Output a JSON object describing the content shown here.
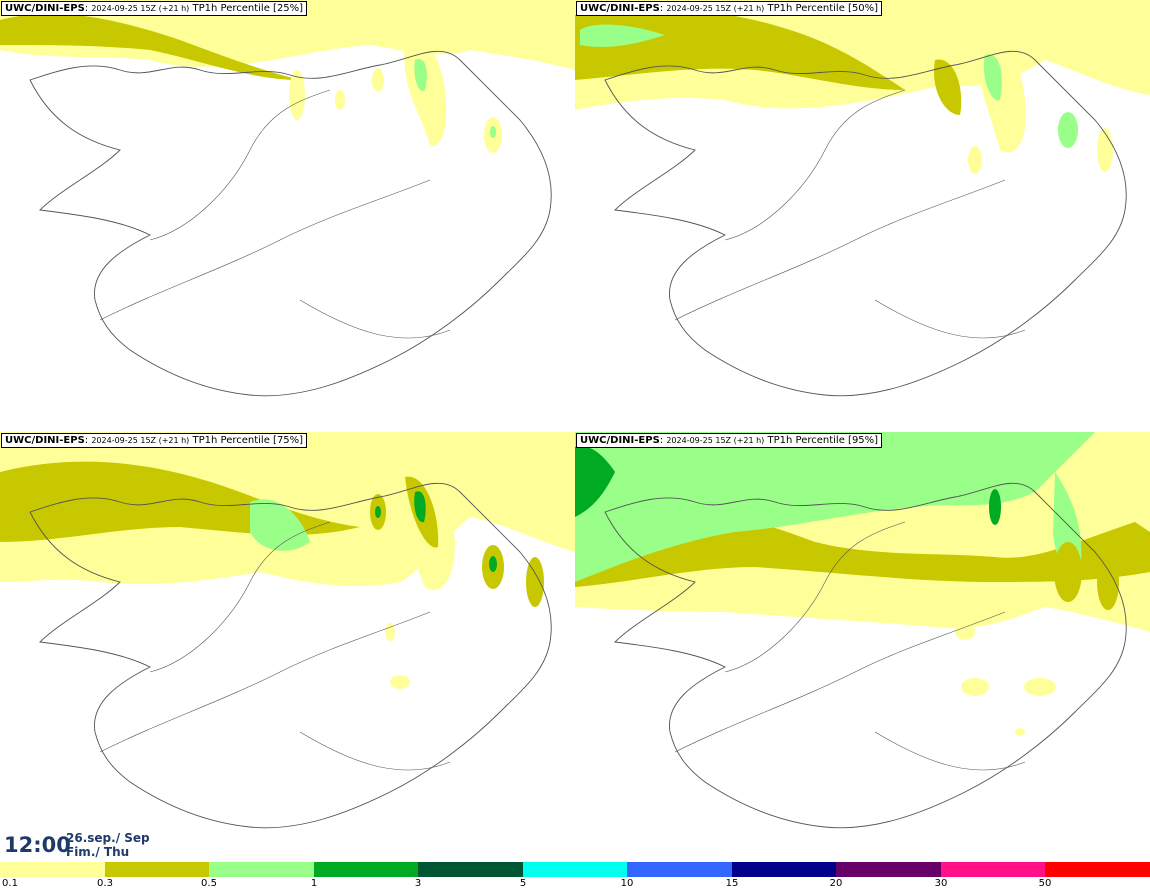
{
  "model": "UWC/DINI-EPS",
  "run_info": "2024-09-25 15Z (+21 h)",
  "variable": "TP1h Percentile",
  "panels": [
    {
      "percentile": "[25%]"
    },
    {
      "percentile": "[50%]"
    },
    {
      "percentile": "[75%]"
    },
    {
      "percentile": "[95%]"
    }
  ],
  "valid_time": {
    "time": "12:00",
    "date": "26.sep./ Sep",
    "day": "Fim./ Thu"
  },
  "legend": {
    "colors": [
      "#ffff99",
      "#c8c800",
      "#99ff88",
      "#00aa22",
      "#005533",
      "#00ffee",
      "#3366ff",
      "#000088",
      "#660066",
      "#ff1188",
      "#ff0000"
    ],
    "ticks": [
      "0.1",
      "0.3",
      "0.5",
      "1",
      "3",
      "5",
      "10",
      "15",
      "20",
      "30",
      "50"
    ]
  },
  "palette": {
    "light": "#ffff99",
    "olive": "#c8c800",
    "lightgreen": "#99ff88",
    "green": "#00aa22",
    "outline": "#555555"
  }
}
